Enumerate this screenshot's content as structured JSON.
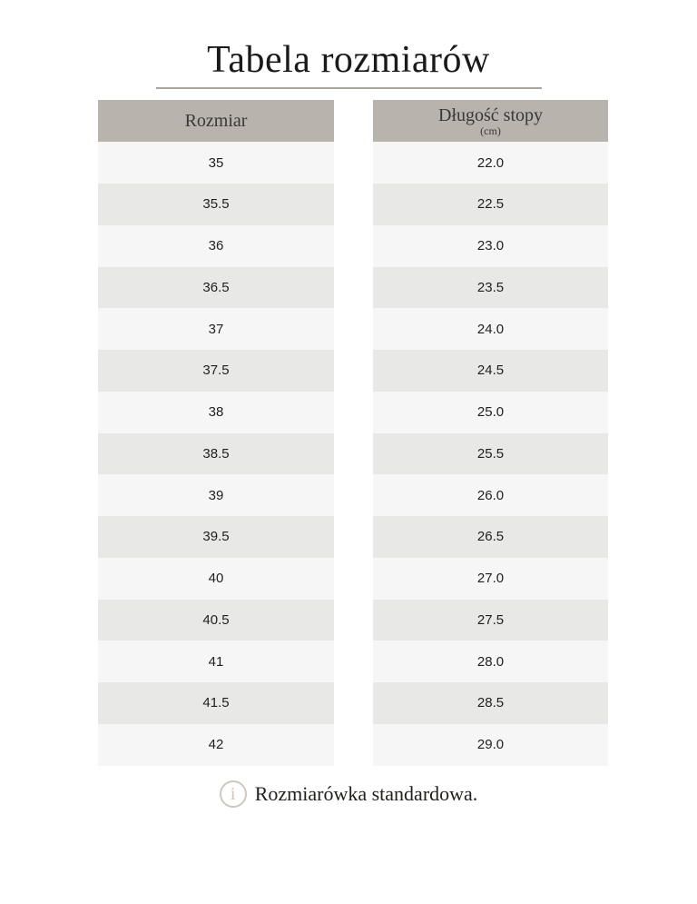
{
  "page": {
    "title": "Tabela rozmiarów",
    "footer_note": "Rozmiarówka standardowa.",
    "info_icon_glyph": "i"
  },
  "header": {
    "col1": "Rozmiar",
    "col2": "Długość stopy",
    "col2_unit": "(cm)"
  },
  "colors": {
    "header_bg": "#b8b3ac",
    "row_light": "#f6f6f6",
    "row_dark": "#e8e8e7",
    "underline": "#a8a49e",
    "info_icon": "#cdc8c1",
    "title_text": "#1c1a19"
  },
  "chart_data": {
    "type": "table",
    "title": "Tabela rozmiarów",
    "columns": [
      "Rozmiar",
      "Długość stopy (cm)"
    ],
    "rows": [
      [
        "35",
        "22.0"
      ],
      [
        "35.5",
        "22.5"
      ],
      [
        "36",
        "23.0"
      ],
      [
        "36.5",
        "23.5"
      ],
      [
        "37",
        "24.0"
      ],
      [
        "37.5",
        "24.5"
      ],
      [
        "38",
        "25.0"
      ],
      [
        "38.5",
        "25.5"
      ],
      [
        "39",
        "26.0"
      ],
      [
        "39.5",
        "26.5"
      ],
      [
        "40",
        "27.0"
      ],
      [
        "40.5",
        "27.5"
      ],
      [
        "41",
        "28.0"
      ],
      [
        "41.5",
        "28.5"
      ],
      [
        "42",
        "29.0"
      ]
    ],
    "note": "Rozmiarówka standardowa."
  }
}
